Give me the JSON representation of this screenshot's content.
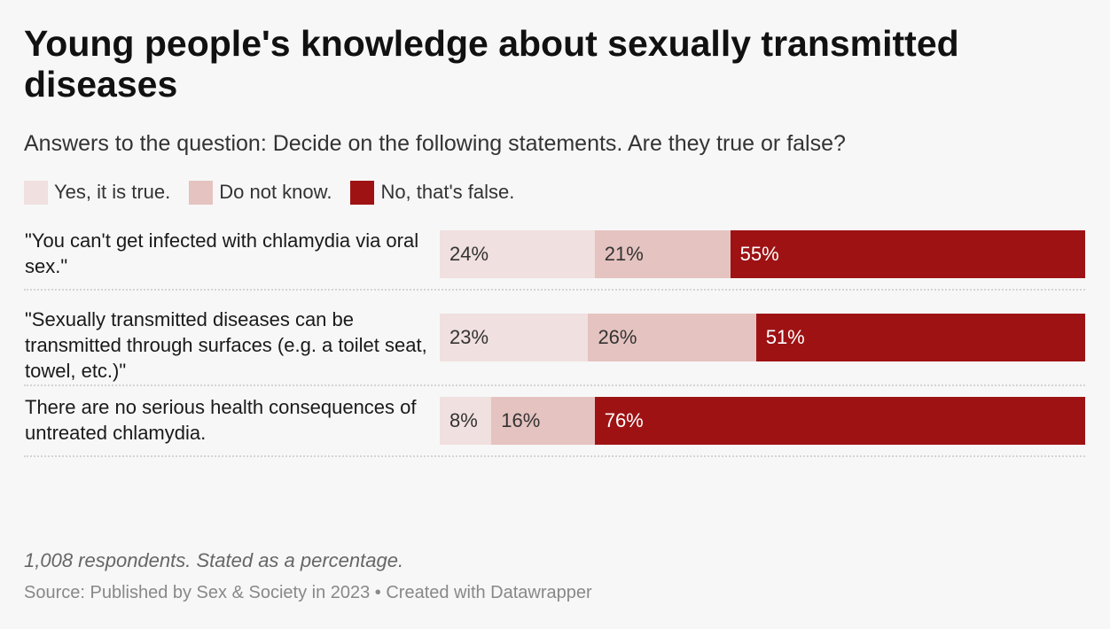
{
  "title": "Young people's knowledge about sexually transmitted diseases",
  "subtitle": "Answers to the question: Decide on the following statements. Are they true or false?",
  "notes": "1,008 respondents. Stated as a percentage.",
  "source": "Source: Published by Sex & Society in 2023 • Created with Datawrapper",
  "chart_data": {
    "type": "bar",
    "orientation": "horizontal",
    "stacked": true,
    "title": "Young people's knowledge about sexually transmitted diseases",
    "subtitle": "Answers to the question: Decide on the following statements. Are they true or false?",
    "unit": "%",
    "legend_position": "top-left",
    "categories": [
      "\"You can't get infected with chlamydia via oral sex.\"",
      "\"Sexually transmitted diseases can be transmitted through surfaces (e.g. a toilet seat, towel, etc.)\"",
      "There are no serious health consequences of untreated chlamydia."
    ],
    "series": [
      {
        "name": "Yes, it is true.",
        "color": "#f0e0df",
        "text_color": "#333333",
        "values": [
          24,
          23,
          8
        ]
      },
      {
        "name": "Do not know.",
        "color": "#e5c3c0",
        "text_color": "#333333",
        "values": [
          21,
          26,
          16
        ]
      },
      {
        "name": "No, that's false.",
        "color": "#9e1214",
        "text_color": "#ffffff",
        "values": [
          55,
          51,
          76
        ]
      }
    ],
    "xlim": [
      0,
      100
    ]
  }
}
